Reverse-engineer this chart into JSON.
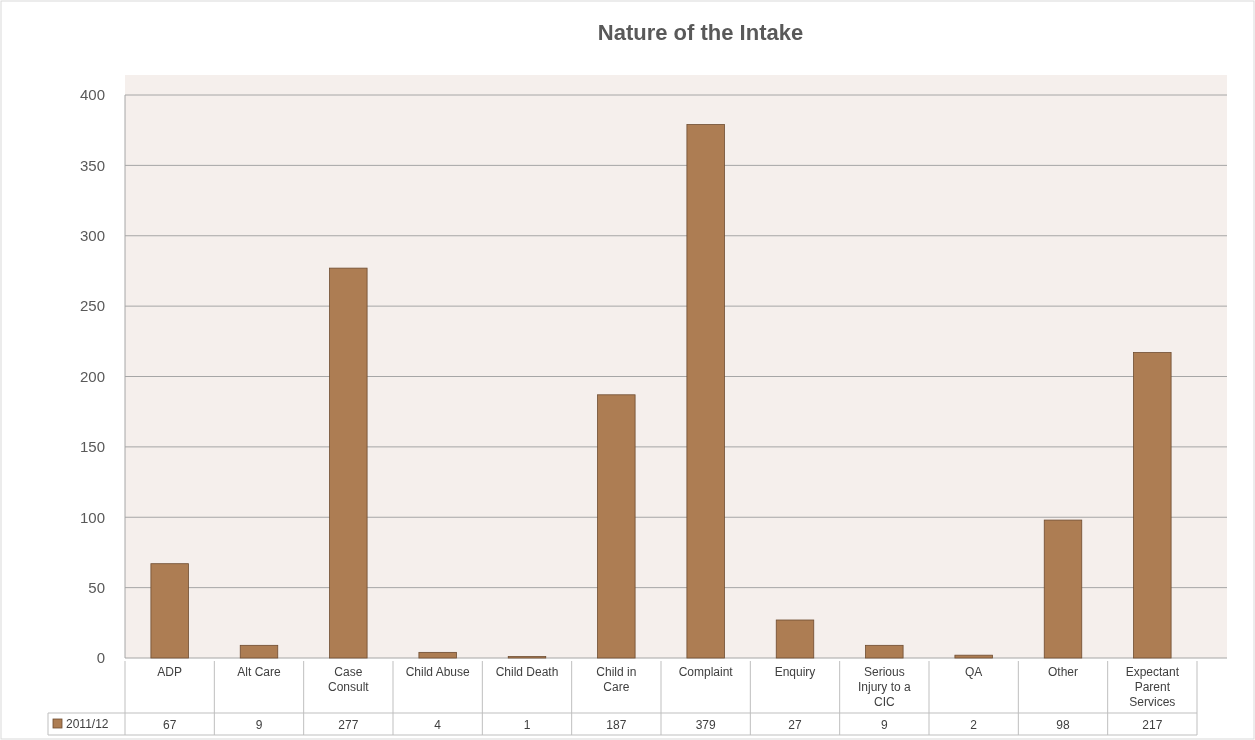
{
  "chart_data": {
    "type": "bar",
    "title": "Nature of the Intake",
    "categories": [
      "ADP",
      "Alt Care",
      "Case Consult",
      "Child Abuse",
      "Child Death",
      "Child in Care",
      "Complaint",
      "Enquiry",
      "Serious Injury to a CIC",
      "QA",
      "Other",
      "Expectant Parent Services"
    ],
    "series": [
      {
        "name": "2011/12",
        "color": "#ad7d53",
        "values": [
          67,
          9,
          277,
          4,
          1,
          187,
          379,
          27,
          9,
          2,
          98,
          217
        ]
      }
    ],
    "ylim": [
      0,
      400
    ],
    "yticks": [
      0,
      50,
      100,
      150,
      200,
      250,
      300,
      350,
      400
    ],
    "grid": "y",
    "data_labels": true,
    "legend": "bottom"
  }
}
